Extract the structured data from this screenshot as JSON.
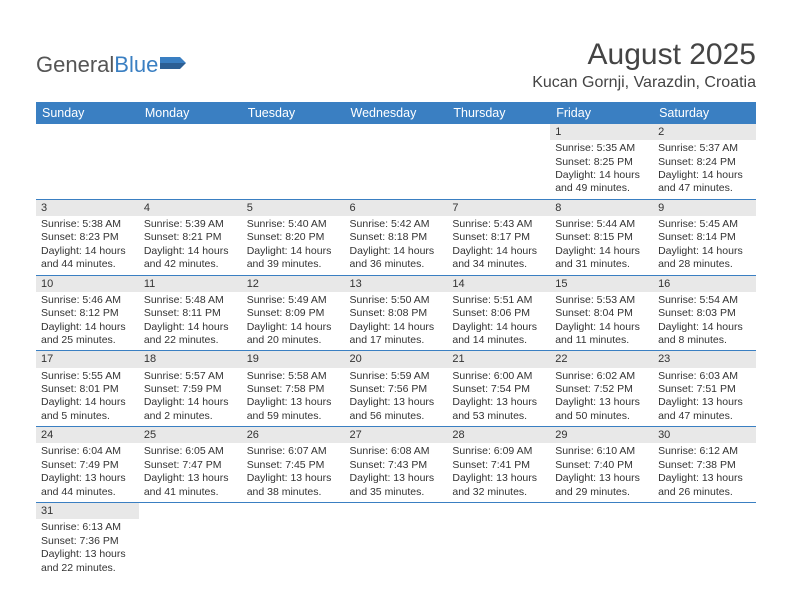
{
  "logo": {
    "general": "General",
    "blue": "Blue"
  },
  "title": "August 2025",
  "location": "Kucan Gornji, Varazdin, Croatia",
  "colors": {
    "header_bg": "#3a7fc2",
    "header_fg": "#ffffff",
    "daynum_bg": "#e8e8e8",
    "row_border": "#3a7fc2",
    "text": "#333333",
    "logo_gray": "#555555",
    "logo_blue": "#3a7fc2"
  },
  "weekdays": [
    "Sunday",
    "Monday",
    "Tuesday",
    "Wednesday",
    "Thursday",
    "Friday",
    "Saturday"
  ],
  "weeks": [
    [
      null,
      null,
      null,
      null,
      null,
      {
        "n": "1",
        "sr": "5:35 AM",
        "ss": "8:25 PM",
        "dl": "14 hours and 49 minutes."
      },
      {
        "n": "2",
        "sr": "5:37 AM",
        "ss": "8:24 PM",
        "dl": "14 hours and 47 minutes."
      }
    ],
    [
      {
        "n": "3",
        "sr": "5:38 AM",
        "ss": "8:23 PM",
        "dl": "14 hours and 44 minutes."
      },
      {
        "n": "4",
        "sr": "5:39 AM",
        "ss": "8:21 PM",
        "dl": "14 hours and 42 minutes."
      },
      {
        "n": "5",
        "sr": "5:40 AM",
        "ss": "8:20 PM",
        "dl": "14 hours and 39 minutes."
      },
      {
        "n": "6",
        "sr": "5:42 AM",
        "ss": "8:18 PM",
        "dl": "14 hours and 36 minutes."
      },
      {
        "n": "7",
        "sr": "5:43 AM",
        "ss": "8:17 PM",
        "dl": "14 hours and 34 minutes."
      },
      {
        "n": "8",
        "sr": "5:44 AM",
        "ss": "8:15 PM",
        "dl": "14 hours and 31 minutes."
      },
      {
        "n": "9",
        "sr": "5:45 AM",
        "ss": "8:14 PM",
        "dl": "14 hours and 28 minutes."
      }
    ],
    [
      {
        "n": "10",
        "sr": "5:46 AM",
        "ss": "8:12 PM",
        "dl": "14 hours and 25 minutes."
      },
      {
        "n": "11",
        "sr": "5:48 AM",
        "ss": "8:11 PM",
        "dl": "14 hours and 22 minutes."
      },
      {
        "n": "12",
        "sr": "5:49 AM",
        "ss": "8:09 PM",
        "dl": "14 hours and 20 minutes."
      },
      {
        "n": "13",
        "sr": "5:50 AM",
        "ss": "8:08 PM",
        "dl": "14 hours and 17 minutes."
      },
      {
        "n": "14",
        "sr": "5:51 AM",
        "ss": "8:06 PM",
        "dl": "14 hours and 14 minutes."
      },
      {
        "n": "15",
        "sr": "5:53 AM",
        "ss": "8:04 PM",
        "dl": "14 hours and 11 minutes."
      },
      {
        "n": "16",
        "sr": "5:54 AM",
        "ss": "8:03 PM",
        "dl": "14 hours and 8 minutes."
      }
    ],
    [
      {
        "n": "17",
        "sr": "5:55 AM",
        "ss": "8:01 PM",
        "dl": "14 hours and 5 minutes."
      },
      {
        "n": "18",
        "sr": "5:57 AM",
        "ss": "7:59 PM",
        "dl": "14 hours and 2 minutes."
      },
      {
        "n": "19",
        "sr": "5:58 AM",
        "ss": "7:58 PM",
        "dl": "13 hours and 59 minutes."
      },
      {
        "n": "20",
        "sr": "5:59 AM",
        "ss": "7:56 PM",
        "dl": "13 hours and 56 minutes."
      },
      {
        "n": "21",
        "sr": "6:00 AM",
        "ss": "7:54 PM",
        "dl": "13 hours and 53 minutes."
      },
      {
        "n": "22",
        "sr": "6:02 AM",
        "ss": "7:52 PM",
        "dl": "13 hours and 50 minutes."
      },
      {
        "n": "23",
        "sr": "6:03 AM",
        "ss": "7:51 PM",
        "dl": "13 hours and 47 minutes."
      }
    ],
    [
      {
        "n": "24",
        "sr": "6:04 AM",
        "ss": "7:49 PM",
        "dl": "13 hours and 44 minutes."
      },
      {
        "n": "25",
        "sr": "6:05 AM",
        "ss": "7:47 PM",
        "dl": "13 hours and 41 minutes."
      },
      {
        "n": "26",
        "sr": "6:07 AM",
        "ss": "7:45 PM",
        "dl": "13 hours and 38 minutes."
      },
      {
        "n": "27",
        "sr": "6:08 AM",
        "ss": "7:43 PM",
        "dl": "13 hours and 35 minutes."
      },
      {
        "n": "28",
        "sr": "6:09 AM",
        "ss": "7:41 PM",
        "dl": "13 hours and 32 minutes."
      },
      {
        "n": "29",
        "sr": "6:10 AM",
        "ss": "7:40 PM",
        "dl": "13 hours and 29 minutes."
      },
      {
        "n": "30",
        "sr": "6:12 AM",
        "ss": "7:38 PM",
        "dl": "13 hours and 26 minutes."
      }
    ],
    [
      {
        "n": "31",
        "sr": "6:13 AM",
        "ss": "7:36 PM",
        "dl": "13 hours and 22 minutes."
      },
      null,
      null,
      null,
      null,
      null,
      null
    ]
  ],
  "labels": {
    "sunrise": "Sunrise:",
    "sunset": "Sunset:",
    "daylight": "Daylight:"
  }
}
